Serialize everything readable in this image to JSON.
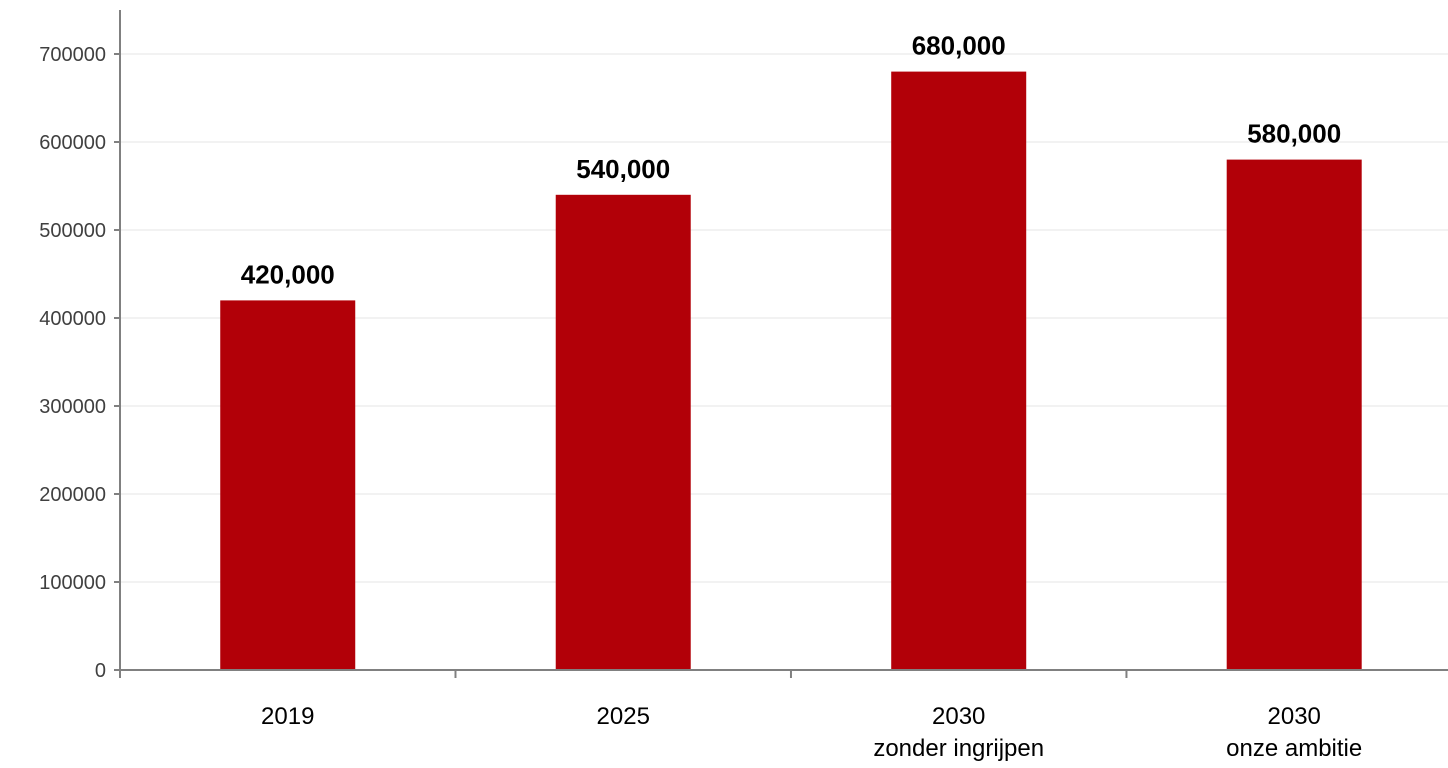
{
  "chart_data": {
    "type": "bar",
    "categories": [
      [
        "2019"
      ],
      [
        "2025"
      ],
      [
        "2030",
        "zonder ingrijpen"
      ],
      [
        "2030",
        "onze ambitie"
      ]
    ],
    "values": [
      420000,
      540000,
      680000,
      580000
    ],
    "data_labels": [
      "420,000",
      "540,000",
      "680,000",
      "580,000"
    ],
    "y_ticks": [
      0,
      100000,
      200000,
      300000,
      400000,
      500000,
      600000,
      700000
    ],
    "y_tick_labels": [
      "0",
      "100000",
      "200000",
      "300000",
      "400000",
      "500000",
      "600000",
      "700000"
    ],
    "ylim": [
      0,
      700000
    ],
    "title": "",
    "xlabel": "",
    "ylabel": "",
    "grid": true,
    "legend": "none",
    "colors": {
      "bar": "#b20008",
      "axis": "#808080",
      "grid": "#e6e6e6"
    }
  }
}
